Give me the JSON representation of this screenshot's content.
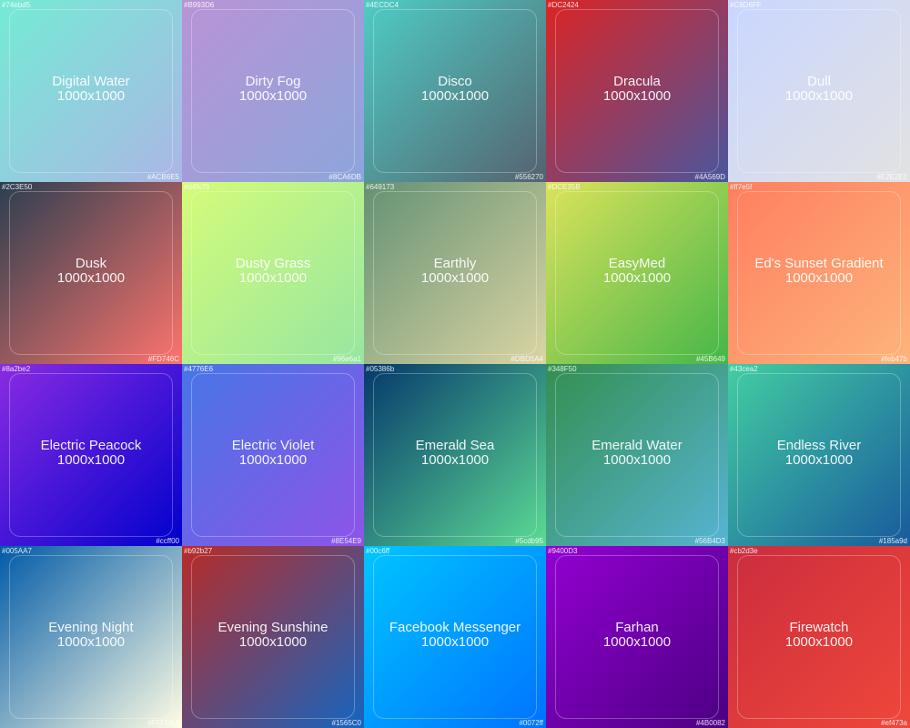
{
  "gradients": [
    {
      "name": "Digital Water",
      "size": "1000x1000",
      "start": "#74ebd5",
      "end": "#ACB6E5",
      "from_color": "#74ebd5",
      "to_color": "#ACB6E5"
    },
    {
      "name": "Dirty Fog",
      "size": "1000x1000",
      "start": "#B993D6",
      "end": "#8CA6DB",
      "from_color": "#B993D6",
      "to_color": "#8CA6DB"
    },
    {
      "name": "Disco",
      "size": "1000x1000",
      "start": "#4ECDC4",
      "end": "#556270",
      "from_color": "#4ECDC4",
      "to_color": "#556270"
    },
    {
      "name": "Dracula",
      "size": "1000x1000",
      "start": "#DC2424",
      "end": "#4A569D",
      "from_color": "#DC2424",
      "to_color": "#4A569D"
    },
    {
      "name": "Dull",
      "size": "1000x1000",
      "start": "#C9D6FF",
      "end": "#E2E2E2",
      "from_color": "#C9D6FF",
      "to_color": "#E2E2E2"
    },
    {
      "name": "Dusk",
      "size": "1000x1000",
      "start": "#2C3E50",
      "end": "#FD746C",
      "from_color": "#2C3E50",
      "to_color": "#FD746C"
    },
    {
      "name": "Dusty Grass",
      "size": "1000x1000",
      "start": "#d4fc79",
      "end": "#96e6a1",
      "from_color": "#d4fc79",
      "to_color": "#96e6a1"
    },
    {
      "name": "Earthly",
      "size": "1000x1000",
      "start": "#649173",
      "end": "#DBD5A4",
      "from_color": "#649173",
      "to_color": "#DBD5A4"
    },
    {
      "name": "EasyMed",
      "size": "1000x1000",
      "start": "#DCE35B",
      "end": "#45B649",
      "from_color": "#DCE35B",
      "to_color": "#45B649"
    },
    {
      "name": "Ed's Sunset Gradient",
      "size": "1000x1000",
      "start": "#ff7e5f",
      "end": "#feb47b",
      "from_color": "#ff7e5f",
      "to_color": "#feb47b"
    },
    {
      "name": "Electric Peacock",
      "size": "1000x1000",
      "start": "#8a2be2",
      "end": "#0000cd",
      "from_color": "#8a2be2",
      "to_color": "#0000cd",
      "end_label": "#ccff00"
    },
    {
      "name": "Electric Violet",
      "size": "1000x1000",
      "start": "#4776E6",
      "end": "#8E54E9",
      "from_color": "#4776E6",
      "to_color": "#8E54E9"
    },
    {
      "name": "Emerald Sea",
      "size": "1000x1000",
      "start": "#05386b",
      "end": "#5cdb95",
      "from_color": "#05386b",
      "to_color": "#5cdb95"
    },
    {
      "name": "Emerald Water",
      "size": "1000x1000",
      "start": "#348F50",
      "end": "#56B4D3",
      "from_color": "#348F50",
      "to_color": "#56B4D3"
    },
    {
      "name": "Endless River",
      "size": "1000x1000",
      "start": "#43cea2",
      "end": "#185a9d",
      "from_color": "#43cea2",
      "to_color": "#185a9d"
    },
    {
      "name": "Evening Night",
      "size": "1000x1000",
      "start": "#005AA7",
      "end": "#FFFDE4",
      "from_color": "#005AA7",
      "to_color": "#FFFDE4"
    },
    {
      "name": "Evening Sunshine",
      "size": "1000x1000",
      "start": "#b92b27",
      "end": "#1565C0",
      "from_color": "#b92b27",
      "to_color": "#1565C0"
    },
    {
      "name": "Facebook Messenger",
      "size": "1000x1000",
      "start": "#00c6ff",
      "end": "#0072ff",
      "from_color": "#00c6ff",
      "to_color": "#0072ff"
    },
    {
      "name": "Farhan",
      "size": "1000x1000",
      "start": "#9400D3",
      "end": "#4B0082",
      "from_color": "#9400D3",
      "to_color": "#4B0082"
    },
    {
      "name": "Firewatch",
      "size": "1000x1000",
      "start": "#cb2d3e",
      "end": "#ef473a",
      "from_color": "#cb2d3e",
      "to_color": "#ef473a"
    }
  ]
}
